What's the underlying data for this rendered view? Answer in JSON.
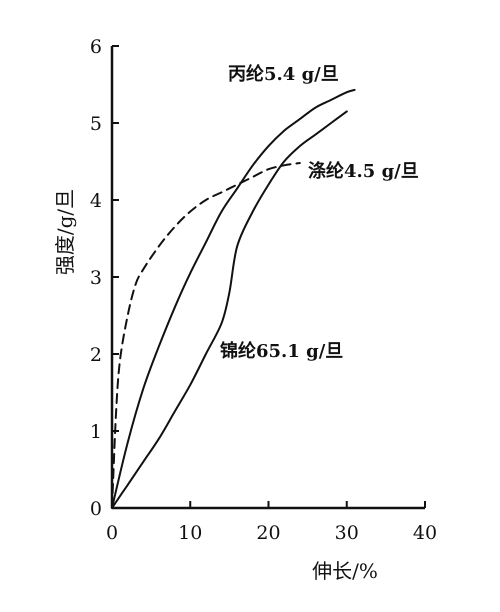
{
  "chart_data": {
    "type": "line",
    "title": "",
    "xlabel": "伸长/%",
    "ylabel": "强度/g/旦",
    "xlim": [
      0,
      40
    ],
    "ylim": [
      0,
      6
    ],
    "x_ticks": [
      0,
      10,
      20,
      30,
      40
    ],
    "y_ticks": [
      0,
      1,
      2,
      3,
      4,
      5,
      6
    ],
    "grid": false,
    "series": [
      {
        "name": "丙纶5.4 g/旦",
        "style": "solid",
        "color": "#111111",
        "x": [
          0,
          2,
          4,
          6,
          8,
          10,
          12,
          14,
          16,
          18,
          20,
          22,
          24,
          26,
          28,
          30,
          31
        ],
        "y": [
          0,
          0.85,
          1.55,
          2.1,
          2.6,
          3.05,
          3.45,
          3.85,
          4.15,
          4.45,
          4.7,
          4.9,
          5.05,
          5.2,
          5.3,
          5.4,
          5.43
        ]
      },
      {
        "name": "涤纶4.5 g/旦",
        "style": "dashed",
        "color": "#111111",
        "x": [
          0,
          0.5,
          1,
          2,
          3,
          4,
          6,
          8,
          10,
          12,
          14,
          16,
          18,
          20,
          22,
          24
        ],
        "y": [
          0,
          1.2,
          1.9,
          2.5,
          2.9,
          3.1,
          3.4,
          3.65,
          3.85,
          4.0,
          4.1,
          4.2,
          4.3,
          4.4,
          4.45,
          4.48
        ]
      },
      {
        "name": "锦纶65.1 g/旦",
        "style": "solid",
        "color": "#111111",
        "x": [
          0,
          2,
          4,
          6,
          8,
          10,
          12,
          14,
          15,
          16,
          18,
          20,
          22,
          24,
          26,
          28,
          30
        ],
        "y": [
          0,
          0.3,
          0.6,
          0.9,
          1.25,
          1.6,
          2.0,
          2.4,
          2.8,
          3.4,
          3.85,
          4.2,
          4.5,
          4.7,
          4.85,
          5.0,
          5.15
        ]
      }
    ],
    "labels": {
      "polypropylene": "丙纶5.4 g/旦",
      "polyester": "涤纶4.5 g/旦",
      "nylon": "锦纶65.1 g/旦"
    }
  }
}
